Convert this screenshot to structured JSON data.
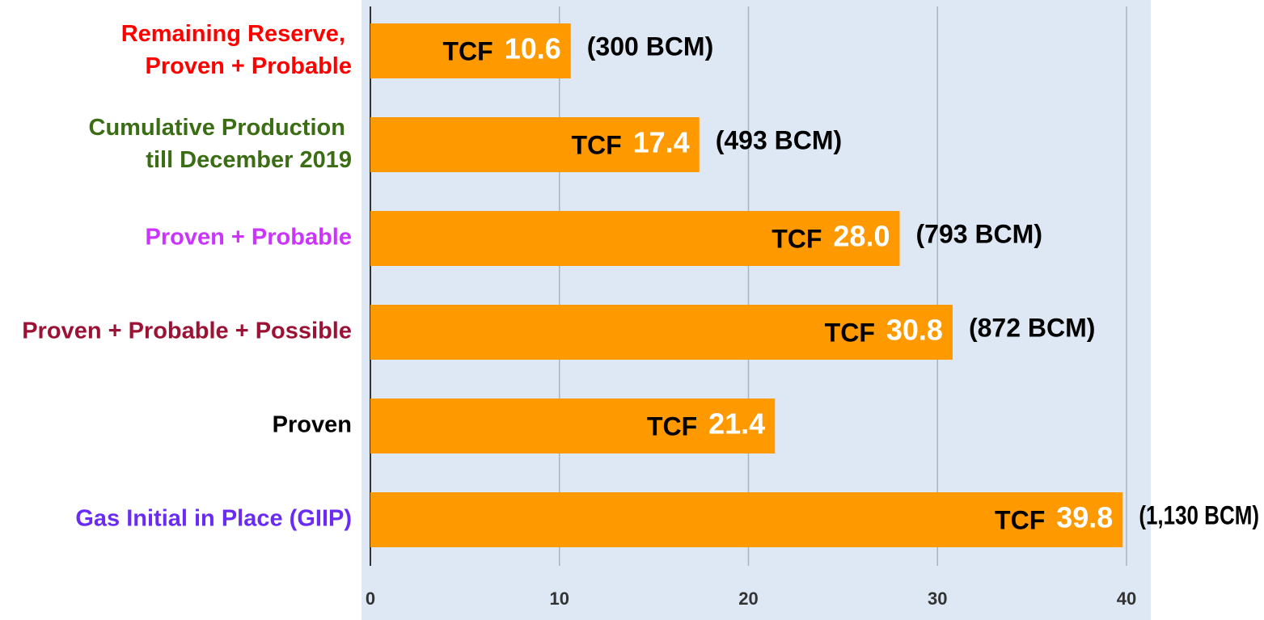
{
  "chart_data": {
    "type": "bar",
    "orientation": "horizontal",
    "categories": [
      "Remaining Reserve,\nProven + Probable",
      "Cumulative Production\ntill December 2019",
      "Proven + Probable",
      "Proven + Probable + Possible",
      "Proven",
      "Gas Initial in Place (GIIP)"
    ],
    "category_colors": [
      "#ff0000",
      "#3b6e14",
      "#cc33ff",
      "#9c1234",
      "#000000",
      "#6a2cf5"
    ],
    "values": [
      10.6,
      17.4,
      28,
      30.8,
      21.4,
      39.8
    ],
    "value_labels": [
      "10.6",
      "17.4",
      "28.0",
      "30.8",
      "21.4",
      "39.8"
    ],
    "unit_label": "TCF",
    "annotations": [
      "(300 BCM)",
      "(493 BCM)",
      "(793 BCM)",
      "(872 BCM)",
      null,
      "(1,130 BCM)"
    ],
    "color": "#ff9900",
    "xlim": [
      0,
      40
    ],
    "xticks": [
      0,
      10,
      20,
      30,
      40
    ],
    "grid": true
  }
}
